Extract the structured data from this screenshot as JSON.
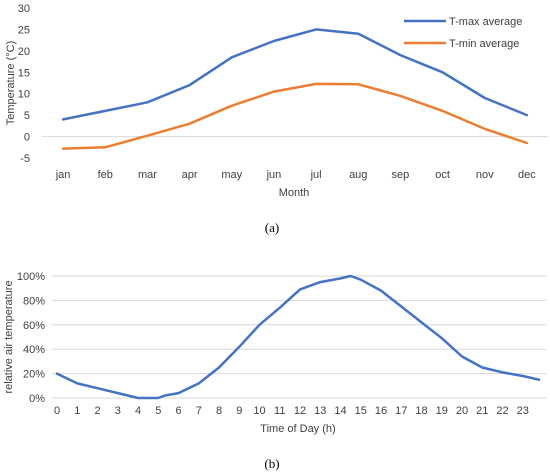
{
  "chart_data": [
    {
      "type": "line",
      "categories": [
        "jan",
        "feb",
        "mar",
        "apr",
        "may",
        "jun",
        "jul",
        "aug",
        "sep",
        "oct",
        "nov",
        "dec"
      ],
      "series": [
        {
          "name": "T-max average",
          "color": "#4472C4",
          "values": [
            4.0,
            6.0,
            8.0,
            12.0,
            18.5,
            22.3,
            25.0,
            24.0,
            19.0,
            15.0,
            9.0,
            5.0
          ]
        },
        {
          "name": "T-min average",
          "color": "#ED7D31",
          "values": [
            -2.8,
            -2.5,
            0.2,
            3.0,
            7.2,
            10.5,
            12.3,
            12.2,
            9.5,
            6.0,
            1.8,
            -1.5
          ]
        }
      ],
      "xlabel": "Month",
      "ylabel": "Temperature (°C)",
      "ylim": [
        -5,
        30
      ],
      "yticks": [
        "-5",
        "0",
        "5",
        "10",
        "15",
        "20",
        "25",
        "30"
      ],
      "grid": false,
      "legend": "top-right",
      "caption": "(a)"
    },
    {
      "type": "line",
      "xticks": [
        "0",
        "1",
        "2",
        "3",
        "4",
        "5",
        "6",
        "7",
        "8",
        "9",
        "10",
        "11",
        "12",
        "13",
        "14",
        "15",
        "16",
        "17",
        "18",
        "19",
        "20",
        "21",
        "22",
        "23"
      ],
      "x": [
        0,
        1,
        2,
        3,
        4,
        5,
        5.3,
        6,
        7,
        8,
        9,
        10,
        11,
        12,
        13,
        14,
        14.5,
        15,
        16,
        17,
        18,
        19,
        20,
        21,
        22,
        23,
        23.8
      ],
      "series": [
        {
          "color": "#4472C4",
          "values": [
            20,
            12,
            8,
            4,
            0,
            0,
            2,
            4,
            12,
            25,
            42,
            60,
            74,
            89,
            95,
            98,
            100,
            97,
            88,
            75,
            62,
            49,
            34,
            25,
            21,
            18,
            15
          ]
        }
      ],
      "xlabel": "Time of Day (h)",
      "ylabel": "relative air temperature",
      "ylim": [
        0,
        100
      ],
      "yticks": [
        "0%",
        "20%",
        "40%",
        "60%",
        "80%",
        "100%"
      ],
      "grid": true,
      "caption": "(b)"
    }
  ]
}
